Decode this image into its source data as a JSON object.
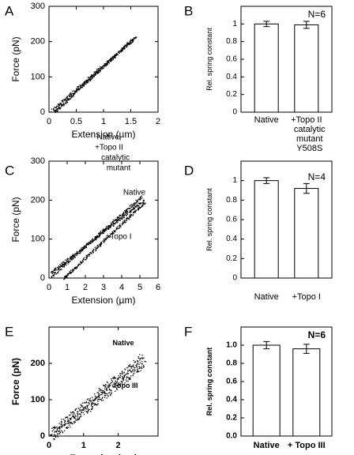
{
  "chart_data": [
    {
      "panel": "A",
      "type": "scatter",
      "xlabel": "Extension (µm)",
      "ylabel": "Force (pN)",
      "xlim": [
        0,
        2
      ],
      "ylim": [
        0,
        300
      ],
      "xticks": [
        0,
        0.5,
        1,
        1.5,
        2
      ],
      "yticks": [
        0,
        100,
        200,
        300
      ],
      "annotations": [
        "Native,",
        "+Topo II",
        "catalytic",
        "mutant"
      ],
      "series": [
        {
          "start": [
            0.05,
            5
          ],
          "end": [
            1.6,
            215
          ],
          "spread": 8
        },
        {
          "start": [
            0.1,
            2
          ],
          "end": [
            1.55,
            210
          ],
          "spread": 7
        }
      ]
    },
    {
      "panel": "B",
      "type": "bar",
      "ylabel": "Rel. spring constant",
      "ylim": [
        0,
        1.2
      ],
      "yticks": [
        0,
        0.2,
        0.4,
        0.6,
        0.8,
        1
      ],
      "note": "N=6",
      "categories": [
        [
          "Native"
        ],
        [
          "+Topo II",
          "catalytic",
          "mutant",
          "Y508S"
        ]
      ],
      "values": [
        1.0,
        0.99
      ],
      "errors": [
        0.03,
        0.04
      ]
    },
    {
      "panel": "C",
      "type": "scatter",
      "xlabel": "Extension (µm)",
      "ylabel": "Force (pN)",
      "xlim": [
        0,
        6
      ],
      "ylim": [
        0,
        300
      ],
      "xticks": [
        0,
        1,
        2,
        3,
        4,
        5,
        6
      ],
      "yticks": [
        0,
        100,
        200,
        300
      ],
      "annotations": [
        "Native",
        "+Topo I"
      ],
      "series": [
        {
          "start": [
            0.1,
            5
          ],
          "end": [
            5.1,
            210
          ],
          "spread": 6
        },
        {
          "start": [
            0.1,
            15
          ],
          "end": [
            5.2,
            200
          ],
          "spread": 6
        },
        {
          "start": [
            0.8,
            0
          ],
          "end": [
            5.25,
            195
          ],
          "spread": 6
        }
      ]
    },
    {
      "panel": "D",
      "type": "bar",
      "ylabel": "Rel. spring constant",
      "ylim": [
        0,
        1.2
      ],
      "yticks": [
        0,
        0.2,
        0.4,
        0.6,
        0.8,
        1
      ],
      "note": "N=4",
      "categories": [
        [
          "Native"
        ],
        [
          "+Topo I"
        ]
      ],
      "values": [
        1.0,
        0.92
      ],
      "errors": [
        0.03,
        0.05
      ]
    },
    {
      "panel": "E",
      "type": "scatter",
      "xlabel": "Extension (µm)",
      "ylabel": "Force (pN)",
      "xlim": [
        0,
        3.15
      ],
      "ylim": [
        0,
        300
      ],
      "xticks": [
        0,
        1,
        2
      ],
      "yticks": [
        0,
        100,
        200
      ],
      "annotations": [
        "Native",
        "+ Topo III"
      ],
      "series": [
        {
          "start": [
            0.05,
            10
          ],
          "end": [
            2.7,
            220
          ],
          "spread": 22
        },
        {
          "start": [
            0.1,
            0
          ],
          "end": [
            2.75,
            200
          ],
          "spread": 22
        }
      ]
    },
    {
      "panel": "F",
      "type": "bar",
      "ylabel": "Rel. spring constant",
      "ylim": [
        0,
        1.2
      ],
      "yticks": [
        0.0,
        0.2,
        0.4,
        0.6,
        0.8,
        1.0
      ],
      "tick_decimals": 1,
      "note": "N=6",
      "categories": [
        [
          "Native"
        ],
        [
          "+ Topo III"
        ]
      ],
      "values": [
        1.0,
        0.96
      ],
      "errors": [
        0.04,
        0.05
      ]
    }
  ]
}
